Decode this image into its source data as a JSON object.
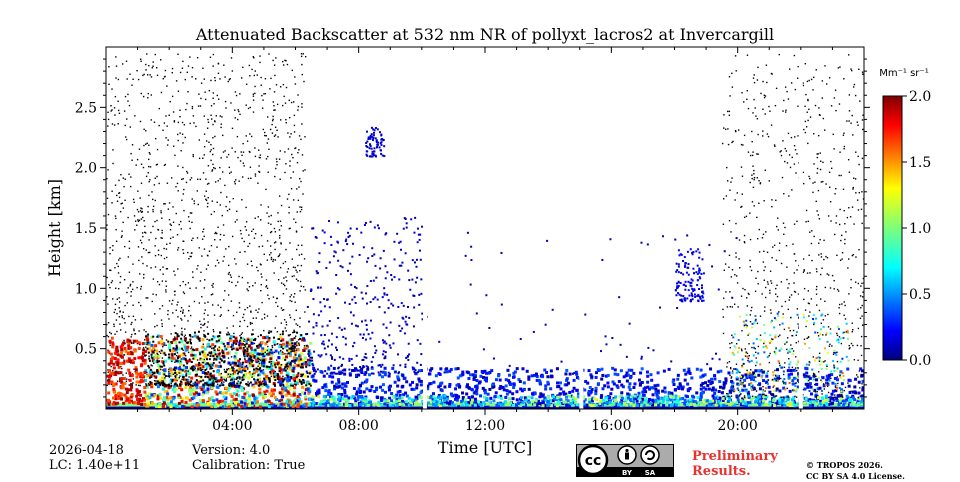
{
  "chart_data": {
    "type": "heatmap",
    "title": "Attenuated Backscatter at 532 nm NR of pollyxt_lacros2 at Invercargill",
    "xlabel": "Time [UTC]",
    "ylabel": "Height [km]",
    "xlim": [
      0,
      24
    ],
    "ylim": [
      0,
      3.0
    ],
    "x_ticks": [
      4,
      8,
      12,
      16,
      20
    ],
    "x_tick_labels": [
      "04:00",
      "08:00",
      "12:00",
      "16:00",
      "20:00"
    ],
    "y_ticks": [
      0.5,
      1.0,
      1.5,
      2.0,
      2.5
    ],
    "y_tick_labels": [
      "0.5",
      "1.0",
      "1.5",
      "2.0",
      "2.5"
    ],
    "colorbar": {
      "label": "Mm⁻¹ sr⁻¹",
      "min": 0.0,
      "max": 2.0,
      "ticks": [
        0.0,
        0.5,
        1.0,
        1.5,
        2.0
      ],
      "tick_labels": [
        "0.0",
        "0.5",
        "1.0",
        "1.5",
        "2.0"
      ],
      "colormap": "jet"
    },
    "features": [
      {
        "name": "surface layer",
        "t_start": 0,
        "t_end": 24,
        "h_top": 0.05,
        "value": 1.2
      },
      {
        "name": "boundary layer aerosol",
        "t_start": 1.2,
        "t_end": 6.5,
        "h_top": 0.6,
        "value": 0.9
      },
      {
        "name": "boundary layer aerosol",
        "t_start": 6.5,
        "t_end": 24,
        "h_top": 0.3,
        "value": 0.25
      },
      {
        "name": "sparse aerosol",
        "t_start": 6.5,
        "t_end": 10,
        "h_top": 1.6,
        "value": 0.1
      },
      {
        "name": "cloud",
        "t_start": 8.3,
        "t_end": 8.7,
        "h_bottom": 2.1,
        "h_top": 2.3,
        "value": 0.15
      },
      {
        "name": "cloud",
        "t_start": 18.1,
        "t_end": 18.8,
        "h_bottom": 0.9,
        "h_top": 1.3,
        "value": 0.2
      }
    ],
    "data_gaps_hours": [
      10.1,
      15.05,
      22.0
    ]
  },
  "meta": {
    "date": "2026-04-18",
    "lc": "LC: 1.40e+11",
    "version": "Version: 4.0",
    "calibration": "Calibration: True"
  },
  "footer": {
    "license_badge_text": [
      "cc",
      "BY",
      "SA"
    ],
    "preliminary_line1": "Preliminary",
    "preliminary_line2": "Results.",
    "copyright_line1": "© TROPOS 2026.",
    "copyright_line2": "CC BY SA 4.0 License."
  },
  "colors": {
    "preliminary": "#e8322f",
    "badge_bg": "#ababab"
  }
}
